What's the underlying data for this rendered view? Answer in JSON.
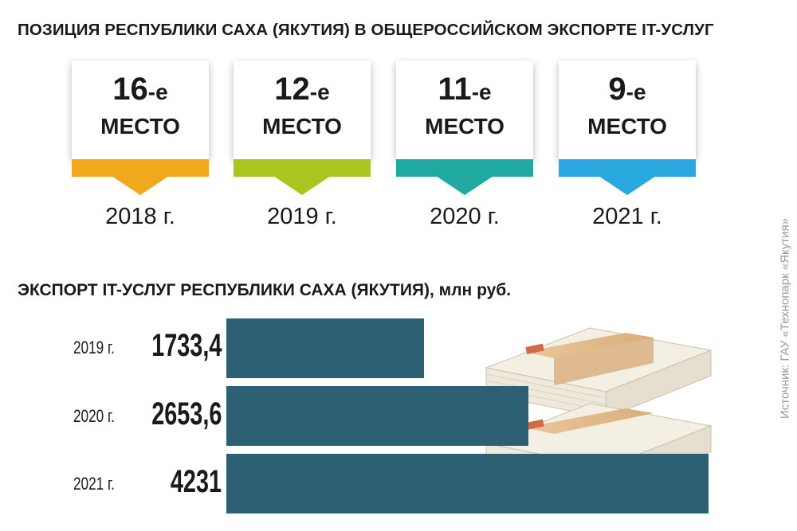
{
  "title_ranks": "ПОЗИЦИЯ РЕСПУБЛИКИ САХА (ЯКУТИЯ) В ОБЩЕРОССИЙСКОМ ЭКСПОРТЕ IT-УСЛУГ",
  "ranks": [
    {
      "num": "16",
      "suffix": "-е",
      "word": "МЕСТО",
      "year": "2018 г.",
      "color": "#f0a81c"
    },
    {
      "num": "12",
      "suffix": "-е",
      "word": "МЕСТО",
      "year": "2019 г.",
      "color": "#a8c61f"
    },
    {
      "num": "11",
      "suffix": "-е",
      "word": "МЕСТО",
      "year": "2020 г.",
      "color": "#1fa9a1"
    },
    {
      "num": "9",
      "suffix": "-е",
      "word": "МЕСТО",
      "year": "2021 г.",
      "color": "#2aa8e0"
    }
  ],
  "source": "Источник: ГАУ «Технопарк «Якутия»",
  "chart_data": {
    "type": "bar",
    "orientation": "horizontal",
    "title": "ЭКСПОРТ IT-УСЛУГ РЕСПУБЛИКИ САХА (ЯКУТИЯ), млн руб.",
    "categories": [
      "2019 г.",
      "2020 г.",
      "2021 г."
    ],
    "values": [
      1733.4,
      2653.6,
      4231
    ],
    "value_labels": [
      "1733,4",
      "2653,6",
      "4231"
    ],
    "bar_color": "#2d6073"
  }
}
